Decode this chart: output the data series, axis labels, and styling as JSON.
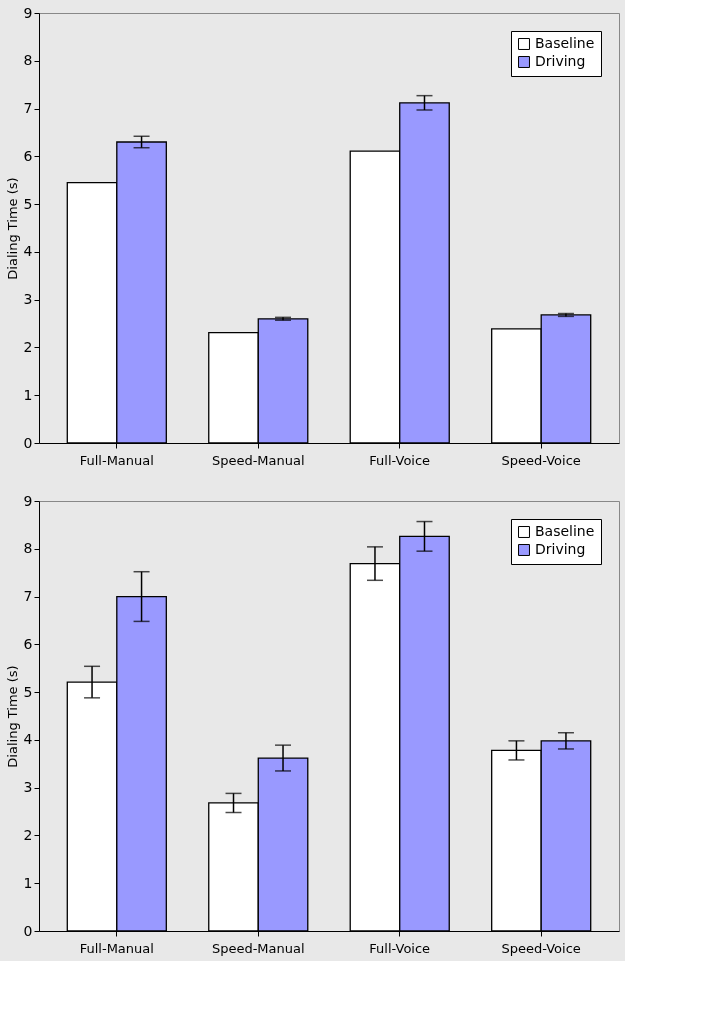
{
  "chart_data": [
    {
      "type": "bar",
      "ylabel": "Dialing Time (s)",
      "categories": [
        "Full-Manual",
        "Speed-Manual",
        "Full-Voice",
        "Speed-Voice"
      ],
      "ylim": [
        0,
        9
      ],
      "yticks": [
        0,
        1,
        2,
        3,
        4,
        5,
        6,
        7,
        8,
        9
      ],
      "legend": "top right",
      "grid": false,
      "series": [
        {
          "name": "Baseline",
          "color": "#ffffff",
          "values": [
            5.45,
            2.31,
            6.11,
            2.39
          ]
        },
        {
          "name": "Driving",
          "color": "#9999ff",
          "values": [
            6.3,
            2.6,
            7.12,
            2.68
          ],
          "errors": [
            0.12,
            0.03,
            0.15,
            0.03
          ]
        }
      ]
    },
    {
      "type": "bar",
      "ylabel": "Dialing Time (s)",
      "categories": [
        "Full-Manual",
        "Speed-Manual",
        "Full-Voice",
        "Speed-Voice"
      ],
      "ylim": [
        0,
        9
      ],
      "yticks": [
        0,
        1,
        2,
        3,
        4,
        5,
        6,
        7,
        8,
        9
      ],
      "legend": "top right",
      "grid": false,
      "series": [
        {
          "name": "Baseline",
          "color": "#ffffff",
          "values": [
            5.21,
            2.68,
            7.69,
            3.78
          ],
          "errors": [
            0.33,
            0.2,
            0.35,
            0.2
          ]
        },
        {
          "name": "Driving",
          "color": "#9999ff",
          "values": [
            7.0,
            3.62,
            8.26,
            3.98
          ],
          "errors": [
            0.52,
            0.27,
            0.31,
            0.17
          ]
        }
      ]
    }
  ]
}
